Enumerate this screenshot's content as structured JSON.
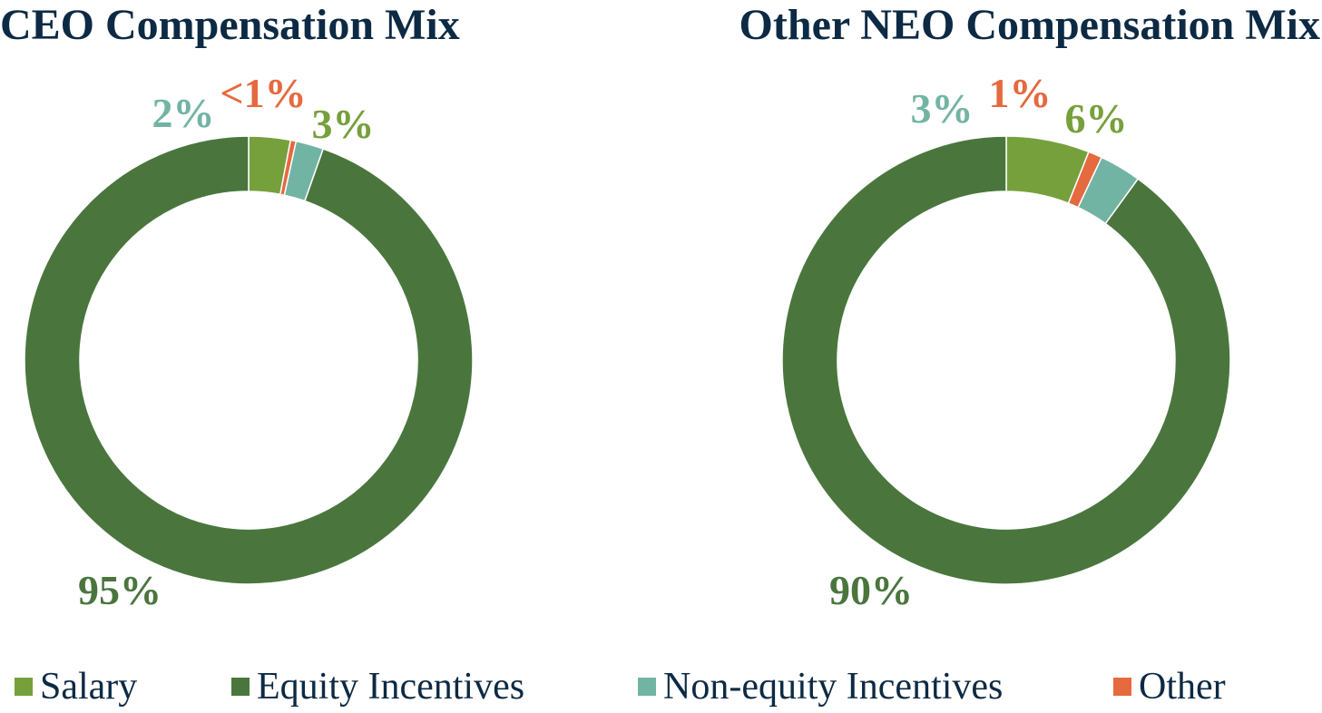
{
  "chart_data": [
    {
      "type": "pie",
      "title": "CEO Compensation Mix",
      "categories": [
        "Salary",
        "Other",
        "Non-equity Incentives",
        "Equity Incentives"
      ],
      "values": [
        3,
        0.4,
        2,
        94.6
      ],
      "data_labels": [
        "3%",
        "<1%",
        "2%",
        "95%"
      ],
      "hole": true
    },
    {
      "type": "pie",
      "title": "Other NEO Compensation Mix",
      "categories": [
        "Salary",
        "Other",
        "Non-equity Incentives",
        "Equity Incentives"
      ],
      "values": [
        6,
        1,
        3,
        90
      ],
      "data_labels": [
        "6%",
        "1%",
        "3%",
        "90%"
      ],
      "hole": true
    }
  ],
  "legend": {
    "placement": "bottom",
    "items": [
      {
        "label": "Salary",
        "color": "#76a03c"
      },
      {
        "label": "Equity Incentives",
        "color": "#4a763e"
      },
      {
        "label": "Non-equity Incentives",
        "color": "#72b4a4"
      },
      {
        "label": "Other",
        "color": "#e56a3f"
      }
    ]
  },
  "colors": {
    "Salary": "#76a03c",
    "Equity Incentives": "#4a763e",
    "Non-equity Incentives": "#72b4a4",
    "Other": "#e56a3f",
    "title": "#0d2a44"
  }
}
